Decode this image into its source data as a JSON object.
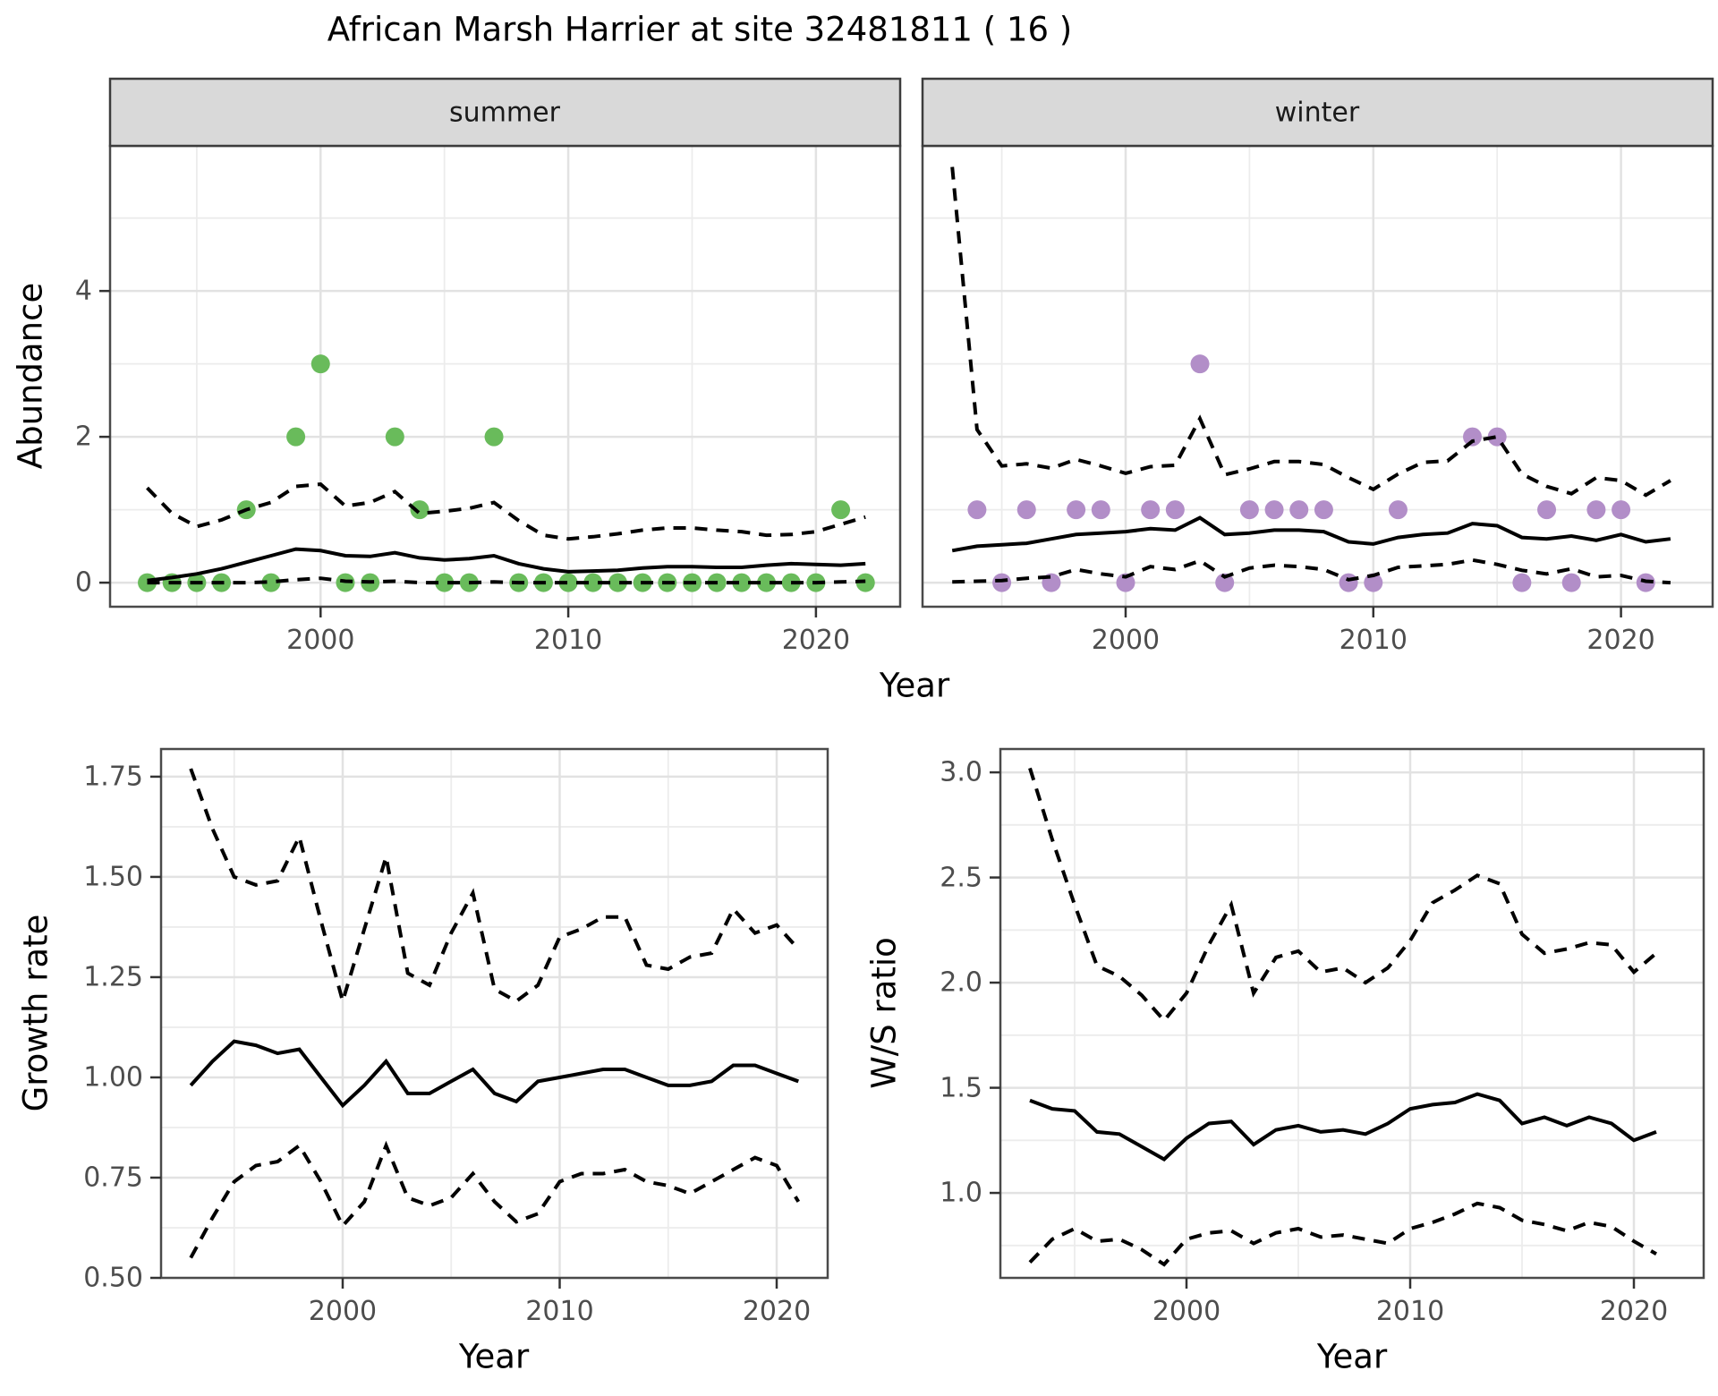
{
  "title": "African Marsh Harrier at site 32481811 ( 16 )",
  "labels": {
    "year": "Year",
    "abundance": "Abundance",
    "growth_rate": "Growth rate",
    "ws_ratio": "W/S ratio"
  },
  "colors": {
    "summer_points": "#69BB5B",
    "winter_points": "#B28EC8",
    "line": "#000000",
    "strip_bg": "#D9D9D9",
    "strip_border": "#3C3C3C",
    "panel_border": "#4A4A4A",
    "grid_major": "#E2E2E2",
    "grid_minor": "#ECECEC",
    "tick_text": "#4D4D4D",
    "tick_mark": "#333333"
  },
  "chart_data": [
    {
      "id": "abundance-summer",
      "type": "line",
      "facet": "summer",
      "xlabel": "Year",
      "ylabel": "Abundance",
      "point_color": "#69BB5B",
      "xlim": [
        1991.5,
        2023.4
      ],
      "ylim": [
        -0.33,
        5.99
      ],
      "x_ticks": [
        2000,
        2010,
        2020
      ],
      "x_tick_labels": [
        "2000",
        "2010",
        "2020"
      ],
      "x_minor": [
        1995,
        2005,
        2015
      ],
      "y_ticks": [
        0,
        2,
        4
      ],
      "y_tick_labels": [
        "0",
        "2",
        "4"
      ],
      "y_minor": [
        1,
        3,
        5
      ],
      "years": [
        1993,
        1994,
        1995,
        1996,
        1997,
        1998,
        1999,
        2000,
        2001,
        2002,
        2003,
        2004,
        2005,
        2006,
        2007,
        2008,
        2009,
        2010,
        2011,
        2012,
        2013,
        2014,
        2015,
        2016,
        2017,
        2018,
        2019,
        2020,
        2021,
        2022
      ],
      "observed_points": [
        [
          1993,
          0
        ],
        [
          1994,
          0
        ],
        [
          1995,
          0
        ],
        [
          1996,
          0
        ],
        [
          1997,
          1
        ],
        [
          1998,
          0
        ],
        [
          1999,
          2
        ],
        [
          2000,
          3
        ],
        [
          2001,
          0
        ],
        [
          2002,
          0
        ],
        [
          2003,
          2
        ],
        [
          2004,
          1
        ],
        [
          2005,
          0
        ],
        [
          2006,
          0
        ],
        [
          2007,
          2
        ],
        [
          2008,
          0
        ],
        [
          2009,
          0
        ],
        [
          2010,
          0
        ],
        [
          2011,
          0
        ],
        [
          2012,
          0
        ],
        [
          2013,
          0
        ],
        [
          2014,
          0
        ],
        [
          2015,
          0
        ],
        [
          2016,
          0
        ],
        [
          2017,
          0
        ],
        [
          2018,
          0
        ],
        [
          2019,
          0
        ],
        [
          2020,
          0
        ],
        [
          2021,
          1
        ],
        [
          2022,
          0
        ]
      ],
      "fit": [
        0.03,
        0.07,
        0.12,
        0.19,
        0.28,
        0.37,
        0.46,
        0.44,
        0.37,
        0.36,
        0.41,
        0.34,
        0.31,
        0.33,
        0.37,
        0.26,
        0.19,
        0.15,
        0.16,
        0.17,
        0.2,
        0.22,
        0.22,
        0.21,
        0.21,
        0.24,
        0.26,
        0.25,
        0.24,
        0.26
      ],
      "ci_upper": [
        1.3,
        0.95,
        0.77,
        0.86,
        1.0,
        1.1,
        1.32,
        1.35,
        1.05,
        1.1,
        1.25,
        0.95,
        0.98,
        1.02,
        1.1,
        0.85,
        0.65,
        0.6,
        0.63,
        0.67,
        0.72,
        0.75,
        0.75,
        0.72,
        0.7,
        0.65,
        0.66,
        0.7,
        0.8,
        0.9
      ],
      "ci_lower": [
        0.0,
        0.0,
        0.0,
        0.0,
        0.0,
        0.01,
        0.04,
        0.06,
        0.02,
        0.01,
        0.02,
        0.0,
        0.0,
        0.0,
        0.01,
        0.0,
        0.0,
        0.0,
        0.0,
        0.0,
        0.0,
        0.0,
        0.0,
        0.0,
        0.0,
        0.0,
        0.0,
        0.0,
        0.01,
        0.02
      ]
    },
    {
      "id": "abundance-winter",
      "type": "line",
      "facet": "winter",
      "xlabel": "Year",
      "ylabel": "Abundance",
      "point_color": "#B28EC8",
      "xlim": [
        1991.8,
        2023.7
      ],
      "ylim": [
        -0.33,
        5.99
      ],
      "x_ticks": [
        2000,
        2010,
        2020
      ],
      "x_tick_labels": [
        "2000",
        "2010",
        "2020"
      ],
      "x_minor": [
        1995,
        2005,
        2015
      ],
      "y_ticks": [
        0,
        2,
        4
      ],
      "y_tick_labels": [
        "0",
        "2",
        "4"
      ],
      "y_minor": [
        1,
        3,
        5
      ],
      "years": [
        1993,
        1994,
        1995,
        1996,
        1997,
        1998,
        1999,
        2000,
        2001,
        2002,
        2003,
        2004,
        2005,
        2006,
        2007,
        2008,
        2009,
        2010,
        2011,
        2012,
        2013,
        2014,
        2015,
        2016,
        2017,
        2018,
        2019,
        2020,
        2021,
        2022
      ],
      "observed_points": [
        [
          1994,
          1
        ],
        [
          1995,
          0
        ],
        [
          1996,
          1
        ],
        [
          1997,
          0
        ],
        [
          1998,
          1
        ],
        [
          1999,
          1
        ],
        [
          2000,
          0
        ],
        [
          2001,
          1
        ],
        [
          2002,
          1
        ],
        [
          2003,
          3
        ],
        [
          2004,
          0
        ],
        [
          2005,
          1
        ],
        [
          2006,
          1
        ],
        [
          2007,
          1
        ],
        [
          2008,
          1
        ],
        [
          2009,
          0
        ],
        [
          2010,
          0
        ],
        [
          2011,
          1
        ],
        [
          2014,
          2
        ],
        [
          2015,
          2
        ],
        [
          2016,
          0
        ],
        [
          2017,
          1
        ],
        [
          2018,
          0
        ],
        [
          2019,
          1
        ],
        [
          2020,
          1
        ],
        [
          2021,
          0
        ]
      ],
      "fit": [
        0.44,
        0.5,
        0.52,
        0.54,
        0.6,
        0.66,
        0.68,
        0.7,
        0.74,
        0.72,
        0.89,
        0.66,
        0.68,
        0.72,
        0.72,
        0.7,
        0.56,
        0.53,
        0.62,
        0.66,
        0.68,
        0.81,
        0.78,
        0.62,
        0.6,
        0.64,
        0.58,
        0.66,
        0.56,
        0.6
      ],
      "ci_upper": [
        5.7,
        2.1,
        1.6,
        1.63,
        1.57,
        1.69,
        1.6,
        1.5,
        1.59,
        1.61,
        2.25,
        1.48,
        1.56,
        1.66,
        1.66,
        1.62,
        1.44,
        1.28,
        1.49,
        1.65,
        1.67,
        1.94,
        2.0,
        1.49,
        1.32,
        1.22,
        1.44,
        1.4,
        1.2,
        1.4
      ],
      "ci_lower": [
        0.01,
        0.02,
        0.03,
        0.06,
        0.08,
        0.18,
        0.12,
        0.08,
        0.22,
        0.18,
        0.3,
        0.08,
        0.2,
        0.24,
        0.22,
        0.18,
        0.04,
        0.1,
        0.21,
        0.23,
        0.25,
        0.31,
        0.25,
        0.17,
        0.12,
        0.19,
        0.08,
        0.1,
        0.02,
        0.0
      ]
    },
    {
      "id": "growth-rate",
      "type": "line",
      "facet": null,
      "xlabel": "Year",
      "ylabel": "Growth rate",
      "point_color": null,
      "xlim": [
        1991.63,
        2022.35
      ],
      "ylim": [
        0.5,
        1.819
      ],
      "x_ticks": [
        2000,
        2010,
        2020
      ],
      "x_tick_labels": [
        "2000",
        "2010",
        "2020"
      ],
      "x_minor": [
        1995,
        2005,
        2015
      ],
      "y_ticks": [
        0.5,
        0.75,
        1.0,
        1.25,
        1.5,
        1.75
      ],
      "y_tick_labels": [
        "0.50",
        "0.75",
        "1.00",
        "1.25",
        "1.50",
        "1.75"
      ],
      "y_minor": [
        0.625,
        0.875,
        1.125,
        1.375,
        1.625
      ],
      "years": [
        1993,
        1994,
        1995,
        1996,
        1997,
        1998,
        1999,
        2000,
        2001,
        2002,
        2003,
        2004,
        2005,
        2006,
        2007,
        2008,
        2009,
        2010,
        2011,
        2012,
        2013,
        2014,
        2015,
        2016,
        2017,
        2018,
        2019,
        2020,
        2021
      ],
      "observed_points": [],
      "fit": [
        0.98,
        1.04,
        1.09,
        1.08,
        1.06,
        1.07,
        1.0,
        0.93,
        0.98,
        1.04,
        0.96,
        0.96,
        0.99,
        1.02,
        0.96,
        0.94,
        0.99,
        1.0,
        1.01,
        1.02,
        1.02,
        1.0,
        0.98,
        0.98,
        0.99,
        1.03,
        1.03,
        1.01,
        0.99
      ],
      "ci_upper": [
        1.77,
        1.62,
        1.5,
        1.48,
        1.49,
        1.6,
        1.39,
        1.19,
        1.37,
        1.55,
        1.26,
        1.23,
        1.36,
        1.46,
        1.22,
        1.19,
        1.23,
        1.35,
        1.37,
        1.4,
        1.4,
        1.28,
        1.27,
        1.3,
        1.31,
        1.42,
        1.36,
        1.38,
        1.32
      ],
      "ci_lower": [
        0.55,
        0.65,
        0.74,
        0.78,
        0.79,
        0.83,
        0.74,
        0.63,
        0.69,
        0.83,
        0.7,
        0.68,
        0.7,
        0.76,
        0.69,
        0.64,
        0.66,
        0.74,
        0.76,
        0.76,
        0.77,
        0.74,
        0.73,
        0.71,
        0.74,
        0.77,
        0.8,
        0.78,
        0.69
      ]
    },
    {
      "id": "ws-ratio",
      "type": "line",
      "facet": null,
      "xlabel": "Year",
      "ylabel": "W/S ratio",
      "point_color": null,
      "xlim": [
        1991.68,
        2023.12
      ],
      "ylim": [
        0.596,
        3.111
      ],
      "x_ticks": [
        2000,
        2010,
        2020
      ],
      "x_tick_labels": [
        "2000",
        "2010",
        "2020"
      ],
      "x_minor": [
        1995,
        2005,
        2015
      ],
      "y_ticks": [
        1.0,
        1.5,
        2.0,
        2.5,
        3.0
      ],
      "y_tick_labels": [
        "1.0",
        "1.5",
        "2.0",
        "2.5",
        "3.0"
      ],
      "y_minor": [
        0.75,
        1.25,
        1.75,
        2.25,
        2.75
      ],
      "years": [
        1993,
        1994,
        1995,
        1996,
        1997,
        1998,
        1999,
        2000,
        2001,
        2002,
        2003,
        2004,
        2005,
        2006,
        2007,
        2008,
        2009,
        2010,
        2011,
        2012,
        2013,
        2014,
        2015,
        2016,
        2017,
        2018,
        2019,
        2020,
        2021
      ],
      "observed_points": [],
      "fit": [
        1.44,
        1.4,
        1.39,
        1.29,
        1.28,
        1.22,
        1.16,
        1.26,
        1.33,
        1.34,
        1.23,
        1.3,
        1.32,
        1.29,
        1.3,
        1.28,
        1.33,
        1.4,
        1.42,
        1.43,
        1.47,
        1.44,
        1.33,
        1.36,
        1.32,
        1.36,
        1.33,
        1.25,
        1.29
      ],
      "ci_upper": [
        3.02,
        2.68,
        2.37,
        2.08,
        2.03,
        1.94,
        1.82,
        1.95,
        2.18,
        2.37,
        1.95,
        2.12,
        2.15,
        2.05,
        2.07,
        2.0,
        2.07,
        2.2,
        2.38,
        2.44,
        2.51,
        2.47,
        2.23,
        2.14,
        2.16,
        2.19,
        2.18,
        2.05,
        2.14
      ],
      "ci_lower": [
        0.67,
        0.78,
        0.83,
        0.77,
        0.78,
        0.73,
        0.66,
        0.78,
        0.81,
        0.82,
        0.76,
        0.81,
        0.83,
        0.79,
        0.8,
        0.78,
        0.76,
        0.83,
        0.86,
        0.9,
        0.95,
        0.93,
        0.87,
        0.85,
        0.82,
        0.86,
        0.84,
        0.77,
        0.71
      ]
    }
  ]
}
